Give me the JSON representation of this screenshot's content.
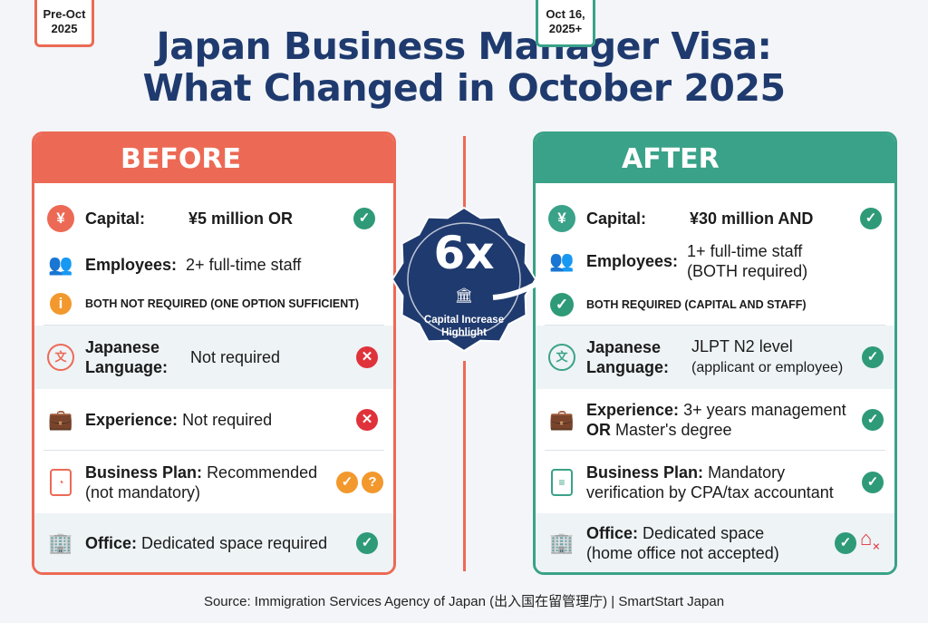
{
  "title": {
    "line1": "Japan Business Manager Visa:",
    "line2": "What Changed in October 2025"
  },
  "colors": {
    "before": "#ec6a55",
    "after": "#3aa288",
    "navy": "#1f3a6e"
  },
  "before": {
    "date_line1": "Pre-Oct",
    "date_line2": "2025",
    "heading": "BEFORE",
    "capital": {
      "label": "Capital:",
      "value": "¥5 million OR",
      "status": "check"
    },
    "employees": {
      "label": "Employees:",
      "value": "2+ full-time staff"
    },
    "note": "BOTH NOT REQUIRED (ONE OPTION SUFFICIENT)",
    "language": {
      "label1": "Japanese",
      "label2": "Language:",
      "value": "Not required",
      "status": "cross"
    },
    "experience": {
      "label": "Experience:",
      "value": "Not required",
      "status": "cross"
    },
    "business_plan": {
      "label": "Business Plan:",
      "value1": "Recommended",
      "value2": "(not mandatory)",
      "status": "check-question"
    },
    "office": {
      "label": "Office:",
      "value": "Dedicated space required",
      "status": "check"
    }
  },
  "after": {
    "date_line1": "Oct 16,",
    "date_line2": "2025+",
    "heading": "AFTER",
    "capital": {
      "label": "Capital:",
      "value": "¥30 million AND",
      "status": "check"
    },
    "employees": {
      "label": "Employees:",
      "value1": "1+ full-time staff",
      "value2": "(BOTH required)"
    },
    "note": "BOTH REQUIRED (CAPITAL AND STAFF)",
    "language": {
      "label1": "Japanese",
      "label2": "Language:",
      "value1": "JLPT N2 level",
      "value2": "(applicant or employee)",
      "status": "check"
    },
    "experience": {
      "label": "Experience:",
      "value1": "3+ years management",
      "value2_bold": "OR",
      "value2": "Master's degree",
      "status": "check"
    },
    "business_plan": {
      "label": "Business Plan:",
      "value1": "Mandatory",
      "value2": "verification by CPA/tax accountant",
      "status": "check"
    },
    "office": {
      "label": "Office:",
      "value1": "Dedicated space",
      "value2": "(home office not accepted)",
      "status": "check-no-home"
    }
  },
  "badge": {
    "multiplier": "6x",
    "caption1": "Capital Increase",
    "caption2": "Highlight"
  },
  "source": "Source: Immigration Services Agency of Japan (出入国在留管理庁) | SmartStart Japan"
}
